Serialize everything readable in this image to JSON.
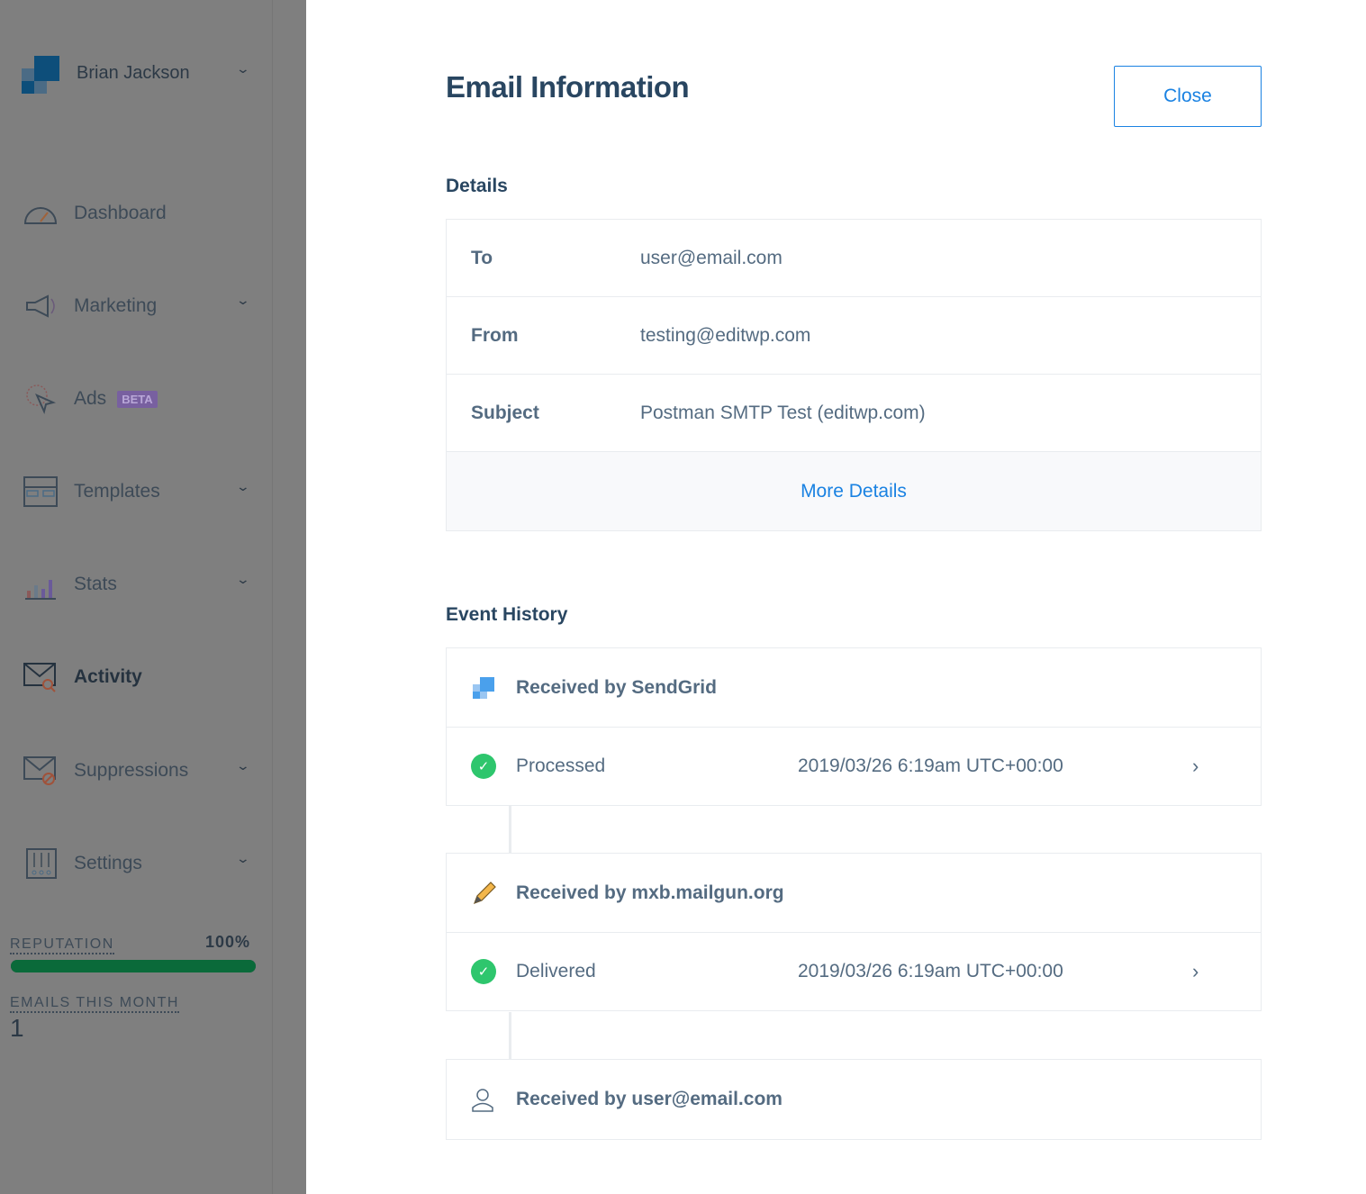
{
  "sidebar": {
    "account": {
      "name": "Brian Jackson",
      "icon": "sendgrid-logo"
    },
    "items": [
      {
        "label": "Dashboard",
        "icon": "speedometer-icon",
        "has_dropdown": false
      },
      {
        "label": "Marketing",
        "icon": "megaphone-icon",
        "has_dropdown": true
      },
      {
        "label": "Ads",
        "icon": "cursor-target-icon",
        "badge": "BETA",
        "has_dropdown": false
      },
      {
        "label": "Templates",
        "icon": "templates-icon",
        "has_dropdown": true
      },
      {
        "label": "Stats",
        "icon": "bar-chart-icon",
        "has_dropdown": true
      },
      {
        "label": "Activity",
        "icon": "envelope-search-icon",
        "has_dropdown": false,
        "active": true
      },
      {
        "label": "Suppressions",
        "icon": "envelope-blocked-icon",
        "has_dropdown": true
      },
      {
        "label": "Settings",
        "icon": "sliders-icon",
        "has_dropdown": true
      }
    ],
    "reputation": {
      "label": "REPUTATION",
      "value": "100%",
      "percent": 100,
      "color": "#0a6a3a"
    },
    "emails_this_month": {
      "label": "EMAILS THIS MONTH",
      "value": "1"
    }
  },
  "main": {
    "title": "Email Information",
    "close_label": "Close",
    "details": {
      "heading": "Details",
      "rows": [
        {
          "key": "To",
          "value": "user@email.com"
        },
        {
          "key": "From",
          "value": "testing@editwp.com"
        },
        {
          "key": "Subject",
          "value": "Postman SMTP Test (editwp.com)"
        }
      ],
      "more_label": "More Details"
    },
    "event_history": {
      "heading": "Event History",
      "groups": [
        {
          "title": "Received by SendGrid",
          "icon": "sendgrid-icon",
          "event": {
            "status": "Processed",
            "time": "2019/03/26 6:19am UTC+00:00"
          }
        },
        {
          "title": "Received by mxb.mailgun.org",
          "icon": "pencil-icon",
          "event": {
            "status": "Delivered",
            "time": "2019/03/26 6:19am UTC+00:00"
          }
        },
        {
          "title": "Received by user@email.com",
          "icon": "user-icon"
        }
      ]
    }
  },
  "colors": {
    "accent": "#1a82e2",
    "success": "#2ec66d",
    "heading": "#294661",
    "overlay": "#7f7f7f"
  }
}
